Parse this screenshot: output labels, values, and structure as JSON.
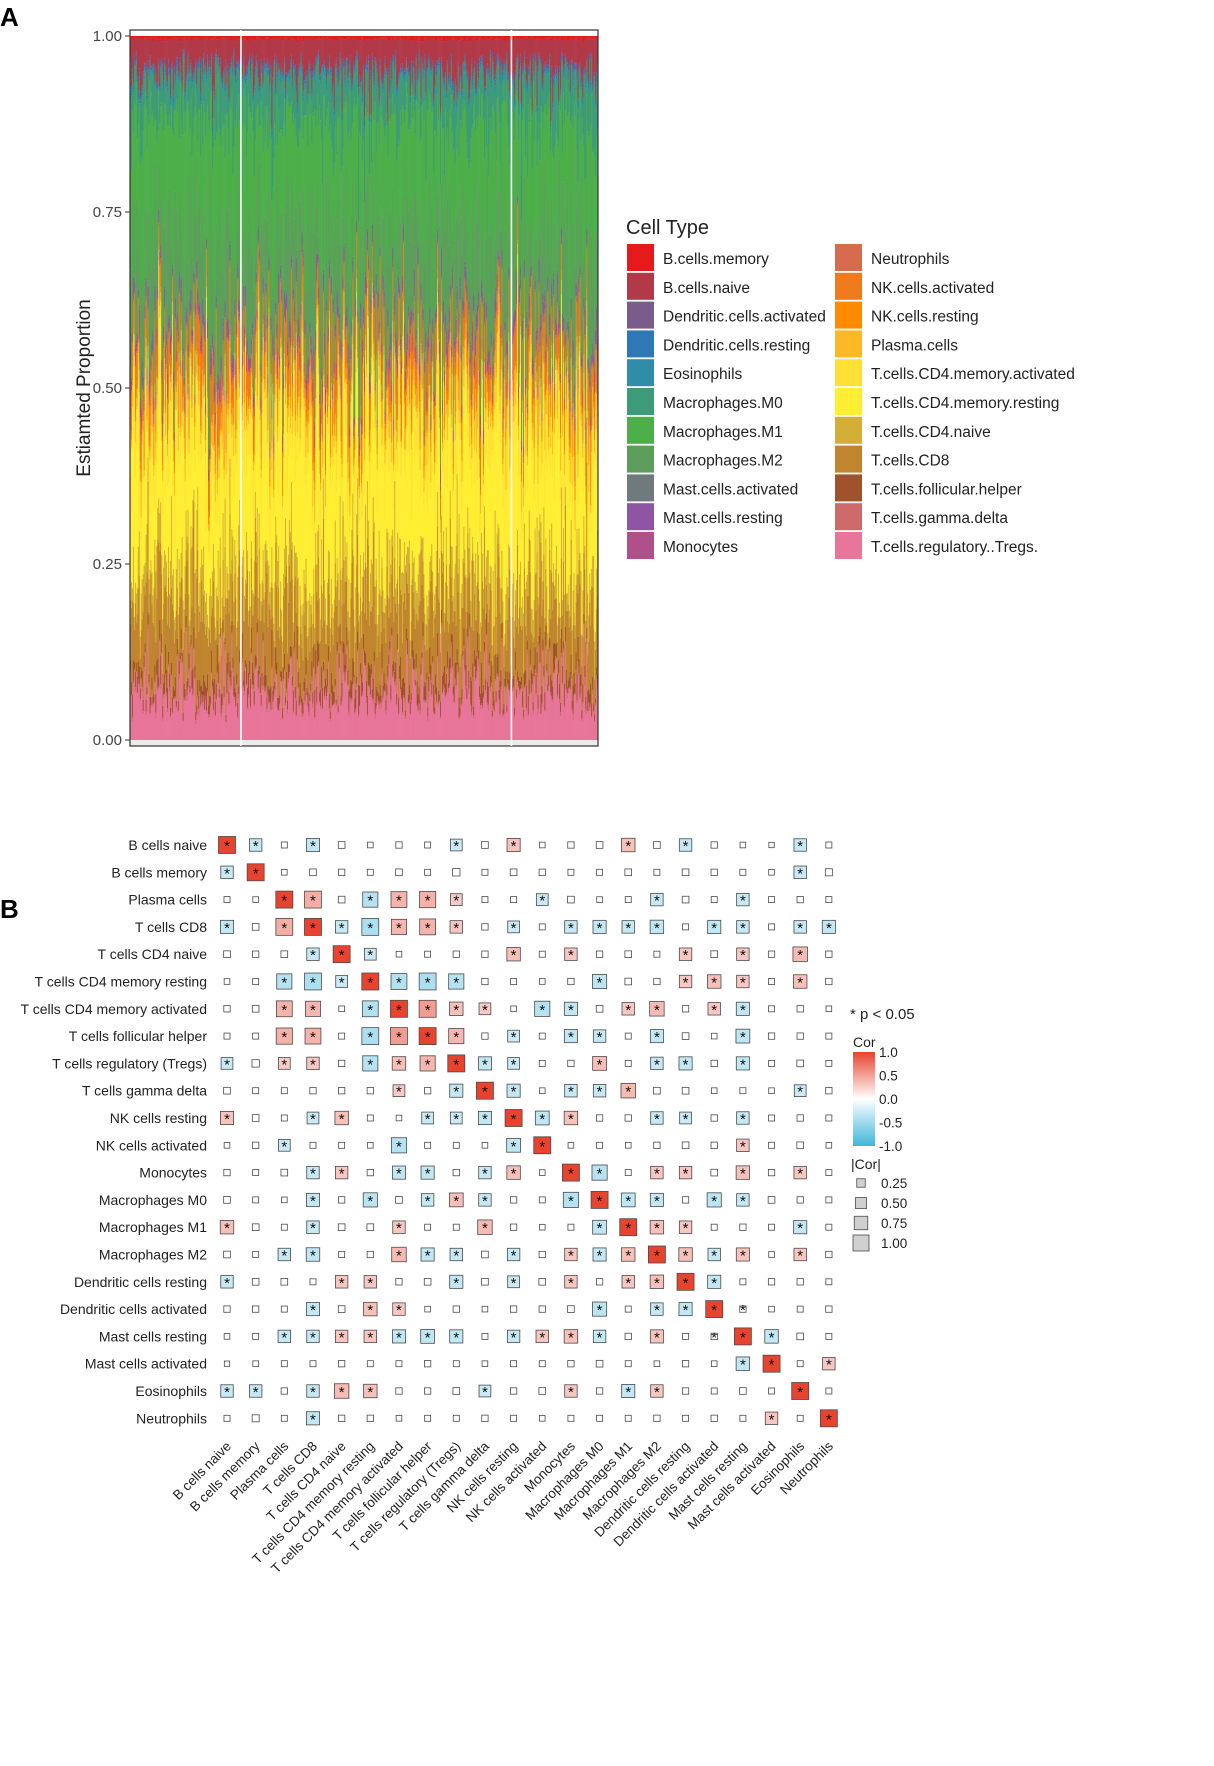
{
  "panels": {
    "a": "A",
    "b": "B"
  },
  "chart_data": [
    {
      "type": "area",
      "subtype": "stacked-proportion",
      "title": "",
      "ylabel": "Estiamted Proportion",
      "xlabel": "",
      "ylim": [
        0,
        1
      ],
      "y_ticks": [
        {
          "value": 0.0,
          "label": "0.00"
        },
        {
          "value": 0.25,
          "label": "0.25"
        },
        {
          "value": 0.5,
          "label": "0.50"
        },
        {
          "value": 0.75,
          "label": "0.75"
        },
        {
          "value": 1.0,
          "label": "1.00"
        }
      ],
      "grid": false,
      "legend_title": "Cell Type",
      "legend_position": "right",
      "n_samples": 480,
      "group_dividers_at_sample_fraction": [
        0.237,
        0.815
      ],
      "series": [
        {
          "name": "B.cells.memory",
          "color": "#E41A1C",
          "mean": 0.004
        },
        {
          "name": "B.cells.naive",
          "color": "#B23A48",
          "mean": 0.045
        },
        {
          "name": "Dendritic.cells.activated",
          "color": "#7A5C8C",
          "mean": 0.004
        },
        {
          "name": "Dendritic.cells.resting",
          "color": "#2F78B8",
          "mean": 0.004
        },
        {
          "name": "Eosinophils",
          "color": "#2F8DA8",
          "mean": 0.005
        },
        {
          "name": "Macrophages.M0",
          "color": "#3E9B7A",
          "mean": 0.06
        },
        {
          "name": "Macrophages.M1",
          "color": "#4DAF4A",
          "mean": 0.17
        },
        {
          "name": "Macrophages.M2",
          "color": "#5E9E5C",
          "mean": 0.13
        },
        {
          "name": "Mast.cells.activated",
          "color": "#707A7C",
          "mean": 0.004
        },
        {
          "name": "Mast.cells.resting",
          "color": "#8E55A3",
          "mean": 0.01
        },
        {
          "name": "Monocytes",
          "color": "#B0508A",
          "mean": 0.01
        },
        {
          "name": "Neutrophils",
          "color": "#D66B4E",
          "mean": 0.005
        },
        {
          "name": "NK.cells.activated",
          "color": "#F07A1E",
          "mean": 0.05
        },
        {
          "name": "NK.cells.resting",
          "color": "#FF8C00",
          "mean": 0.01
        },
        {
          "name": "Plasma.cells",
          "color": "#FDB827",
          "mean": 0.025
        },
        {
          "name": "T.cells.CD4.memory.activated",
          "color": "#FFE135",
          "mean": 0.05
        },
        {
          "name": "T.cells.CD4.memory.resting",
          "color": "#FFEE33",
          "mean": 0.17
        },
        {
          "name": "T.cells.CD4.naive",
          "color": "#D4AF37",
          "mean": 0.05
        },
        {
          "name": "T.cells.CD8",
          "color": "#C0852E",
          "mean": 0.1
        },
        {
          "name": "T.cells.follicular.helper",
          "color": "#A0522D",
          "mean": 0.02
        },
        {
          "name": "T.cells.gamma.delta",
          "color": "#CD6B6B",
          "mean": 0.004
        },
        {
          "name": "T.cells.regulatory..Tregs.",
          "color": "#E8759A",
          "mean": 0.07
        }
      ]
    },
    {
      "type": "heatmap",
      "subtype": "correlation-matrix",
      "title": "",
      "labels": [
        "B cells naive",
        "B cells memory",
        "Plasma cells",
        "T cells CD8",
        "T cells CD4 naive",
        "T cells CD4 memory resting",
        "T cells CD4 memory activated",
        "T cells follicular helper",
        "T cells regulatory (Tregs)",
        "T cells gamma delta",
        "NK cells resting",
        "NK cells activated",
        "Monocytes",
        "Macrophages M0",
        "Macrophages M1",
        "Macrophages M2",
        "Dendritic cells resting",
        "Dendritic cells activated",
        "Mast cells resting",
        "Mast cells activated",
        "Eosinophils",
        "Neutrophils"
      ],
      "sig_note": "* p < 0.05",
      "color_legend": {
        "title": "Cor",
        "ticks": [
          {
            "value": 1.0,
            "label": "1.0"
          },
          {
            "value": 0.5,
            "label": "0.5"
          },
          {
            "value": 0.0,
            "label": "0.0"
          },
          {
            "value": -0.5,
            "label": "-0.5"
          },
          {
            "value": -1.0,
            "label": "-1.0"
          }
        ],
        "high_color": "#E8432F",
        "mid_color": "#FFFFFF",
        "low_color": "#3FB6DB"
      },
      "size_legend": {
        "title": "|Cor|",
        "ticks": [
          {
            "value": 0.25,
            "label": "0.25"
          },
          {
            "value": 0.5,
            "label": "0.50"
          },
          {
            "value": 0.75,
            "label": "0.75"
          },
          {
            "value": 1.0,
            "label": "1.00"
          }
        ]
      },
      "significance_star": "*",
      "correlations": [
        [
          1.0,
          -0.22,
          0.03,
          -0.24,
          -0.05,
          -0.02,
          0.04,
          -0.03,
          -0.2,
          0.05,
          0.24,
          0.02,
          -0.04,
          -0.05,
          0.25,
          -0.05,
          -0.22,
          -0.04,
          -0.02,
          0.01,
          -0.22,
          0.03
        ],
        [
          -0.22,
          1.0,
          0.02,
          0.05,
          -0.04,
          0.03,
          0.05,
          -0.03,
          0.07,
          -0.03,
          0.05,
          0.04,
          -0.03,
          0.03,
          -0.05,
          0.03,
          0.05,
          -0.04,
          0.03,
          -0.02,
          -0.22,
          -0.06
        ],
        [
          0.03,
          0.02,
          1.0,
          0.35,
          -0.05,
          -0.3,
          0.32,
          0.33,
          0.2,
          -0.03,
          -0.03,
          -0.2,
          -0.05,
          0.02,
          0.03,
          -0.22,
          0.05,
          -0.03,
          -0.22,
          0.03,
          -0.04,
          0.03
        ],
        [
          -0.24,
          0.05,
          0.35,
          1.0,
          -0.22,
          -0.35,
          0.3,
          0.32,
          0.22,
          0.04,
          -0.2,
          -0.03,
          -0.22,
          -0.24,
          -0.22,
          -0.25,
          -0.03,
          -0.24,
          -0.22,
          -0.03,
          -0.22,
          -0.24
        ],
        [
          -0.05,
          -0.04,
          -0.05,
          -0.22,
          1.0,
          -0.2,
          0.02,
          -0.03,
          -0.04,
          0.04,
          0.25,
          -0.03,
          0.22,
          -0.04,
          -0.05,
          -0.03,
          0.22,
          0.05,
          0.22,
          -0.04,
          0.28,
          -0.04
        ],
        [
          -0.02,
          0.03,
          -0.3,
          -0.35,
          -0.2,
          1.0,
          -0.32,
          -0.35,
          -0.3,
          0.04,
          0.03,
          0.02,
          0.04,
          -0.27,
          -0.05,
          0.04,
          0.22,
          0.25,
          0.22,
          -0.03,
          0.25,
          0.04
        ],
        [
          0.04,
          0.05,
          0.32,
          0.3,
          0.02,
          -0.32,
          1.0,
          0.45,
          0.25,
          0.2,
          0.02,
          -0.3,
          -0.24,
          -0.05,
          0.22,
          0.28,
          -0.04,
          0.22,
          -0.24,
          -0.03,
          0.04,
          0.02
        ],
        [
          -0.03,
          -0.03,
          0.33,
          0.32,
          -0.03,
          -0.35,
          0.45,
          1.0,
          0.3,
          -0.04,
          -0.2,
          -0.03,
          -0.24,
          -0.22,
          -0.03,
          -0.24,
          -0.05,
          0.02,
          -0.26,
          -0.04,
          -0.04,
          0.03
        ],
        [
          -0.2,
          0.07,
          0.2,
          0.22,
          -0.04,
          -0.3,
          0.25,
          0.3,
          1.0,
          -0.24,
          -0.2,
          -0.03,
          0.04,
          0.26,
          -0.03,
          -0.22,
          -0.24,
          -0.04,
          -0.24,
          -0.03,
          -0.05,
          -0.03
        ],
        [
          0.05,
          -0.03,
          -0.03,
          0.04,
          0.04,
          0.04,
          0.2,
          -0.04,
          -0.24,
          1.0,
          -0.24,
          0.02,
          -0.22,
          -0.22,
          0.28,
          -0.05,
          0.05,
          0.02,
          -0.03,
          0.02,
          -0.2,
          -0.04
        ],
        [
          0.24,
          0.05,
          -0.03,
          -0.2,
          0.25,
          0.03,
          0.02,
          -0.2,
          -0.2,
          -0.24,
          1.0,
          -0.26,
          0.25,
          -0.04,
          0.04,
          -0.22,
          -0.2,
          -0.04,
          -0.22,
          0.03,
          -0.04,
          -0.03
        ],
        [
          0.02,
          0.04,
          -0.2,
          -0.03,
          -0.03,
          0.02,
          -0.3,
          -0.03,
          -0.03,
          0.02,
          -0.26,
          1.0,
          -0.02,
          -0.03,
          -0.02,
          -0.04,
          0.05,
          0.04,
          0.22,
          -0.03,
          -0.05,
          -0.02
        ],
        [
          -0.04,
          -0.03,
          -0.05,
          -0.22,
          0.22,
          0.04,
          -0.24,
          -0.24,
          0.04,
          -0.22,
          0.25,
          -0.02,
          1.0,
          -0.3,
          0.03,
          0.22,
          0.22,
          -0.05,
          0.25,
          0.04,
          0.22,
          0.03
        ],
        [
          -0.05,
          0.03,
          0.02,
          -0.24,
          -0.04,
          -0.27,
          -0.05,
          -0.22,
          0.26,
          -0.22,
          -0.04,
          -0.03,
          -0.3,
          1.0,
          -0.26,
          -0.24,
          -0.04,
          -0.27,
          -0.22,
          -0.05,
          -0.04,
          0.03
        ],
        [
          0.25,
          -0.05,
          0.03,
          -0.22,
          -0.05,
          -0.05,
          0.22,
          -0.03,
          -0.03,
          0.28,
          0.04,
          -0.02,
          0.03,
          -0.26,
          1.0,
          0.25,
          0.22,
          -0.03,
          -0.04,
          0.03,
          -0.24,
          -0.03
        ],
        [
          -0.05,
          0.03,
          -0.22,
          -0.25,
          -0.03,
          0.04,
          0.28,
          -0.24,
          -0.22,
          -0.05,
          -0.22,
          -0.04,
          0.22,
          -0.24,
          0.25,
          1.0,
          0.25,
          -0.22,
          0.24,
          -0.02,
          0.22,
          -0.04
        ],
        [
          -0.22,
          0.05,
          0.05,
          -0.03,
          0.22,
          0.22,
          -0.04,
          -0.05,
          -0.24,
          0.05,
          -0.2,
          0.05,
          0.22,
          -0.04,
          0.22,
          0.25,
          1.0,
          -0.24,
          -0.03,
          0.04,
          -0.04,
          0.03
        ],
        [
          -0.04,
          -0.04,
          -0.03,
          -0.24,
          0.05,
          0.25,
          0.22,
          0.02,
          -0.04,
          0.02,
          -0.04,
          0.04,
          -0.05,
          -0.27,
          -0.03,
          -0.22,
          -0.24,
          1.0,
          0.04,
          -0.02,
          -0.03,
          -0.04
        ],
        [
          -0.02,
          0.03,
          -0.22,
          -0.22,
          0.22,
          0.22,
          -0.24,
          -0.26,
          -0.24,
          -0.03,
          -0.22,
          0.22,
          0.25,
          -0.22,
          -0.04,
          0.24,
          -0.03,
          0.04,
          1.0,
          -0.25,
          -0.05,
          0.03
        ],
        [
          0.01,
          -0.02,
          0.03,
          -0.03,
          -0.04,
          -0.03,
          -0.03,
          -0.04,
          -0.03,
          0.02,
          0.03,
          -0.03,
          0.04,
          -0.05,
          0.03,
          -0.02,
          0.04,
          -0.02,
          -0.25,
          1.0,
          0.03,
          0.22
        ],
        [
          -0.22,
          -0.22,
          -0.04,
          -0.22,
          0.28,
          0.25,
          0.04,
          -0.04,
          -0.05,
          -0.2,
          -0.04,
          -0.05,
          0.22,
          -0.04,
          -0.24,
          0.22,
          -0.04,
          -0.03,
          -0.05,
          0.03,
          1.0,
          -0.03
        ],
        [
          0.03,
          -0.06,
          0.03,
          -0.24,
          -0.04,
          0.04,
          0.02,
          0.03,
          -0.03,
          -0.04,
          -0.03,
          -0.02,
          0.03,
          0.03,
          -0.03,
          -0.04,
          0.03,
          -0.04,
          0.03,
          0.22,
          -0.03,
          1.0
        ]
      ],
      "significant_upper": [
        [
          0,
          1
        ],
        [
          0,
          3
        ],
        [
          0,
          8
        ],
        [
          0,
          10
        ],
        [
          0,
          14
        ],
        [
          0,
          16
        ],
        [
          0,
          20
        ],
        [
          1,
          20
        ],
        [
          2,
          3
        ],
        [
          2,
          5
        ],
        [
          2,
          6
        ],
        [
          2,
          7
        ],
        [
          2,
          8
        ],
        [
          2,
          11
        ],
        [
          2,
          15
        ],
        [
          2,
          18
        ],
        [
          3,
          4
        ],
        [
          3,
          5
        ],
        [
          3,
          6
        ],
        [
          3,
          7
        ],
        [
          3,
          8
        ],
        [
          3,
          10
        ],
        [
          3,
          12
        ],
        [
          3,
          13
        ],
        [
          3,
          14
        ],
        [
          3,
          15
        ],
        [
          3,
          17
        ],
        [
          3,
          18
        ],
        [
          3,
          20
        ],
        [
          3,
          21
        ],
        [
          4,
          5
        ],
        [
          4,
          10
        ],
        [
          4,
          12
        ],
        [
          4,
          16
        ],
        [
          4,
          18
        ],
        [
          4,
          20
        ],
        [
          5,
          6
        ],
        [
          5,
          7
        ],
        [
          5,
          8
        ],
        [
          5,
          13
        ],
        [
          5,
          16
        ],
        [
          5,
          17
        ],
        [
          5,
          18
        ],
        [
          5,
          20
        ],
        [
          6,
          7
        ],
        [
          6,
          8
        ],
        [
          6,
          9
        ],
        [
          6,
          11
        ],
        [
          6,
          12
        ],
        [
          6,
          14
        ],
        [
          6,
          15
        ],
        [
          6,
          17
        ],
        [
          6,
          18
        ],
        [
          7,
          8
        ],
        [
          7,
          10
        ],
        [
          7,
          12
        ],
        [
          7,
          13
        ],
        [
          7,
          15
        ],
        [
          7,
          18
        ],
        [
          8,
          9
        ],
        [
          8,
          10
        ],
        [
          8,
          13
        ],
        [
          8,
          15
        ],
        [
          8,
          16
        ],
        [
          8,
          18
        ],
        [
          9,
          10
        ],
        [
          9,
          12
        ],
        [
          9,
          13
        ],
        [
          9,
          14
        ],
        [
          9,
          20
        ],
        [
          10,
          11
        ],
        [
          10,
          12
        ],
        [
          10,
          15
        ],
        [
          10,
          16
        ],
        [
          10,
          18
        ],
        [
          11,
          18
        ],
        [
          12,
          13
        ],
        [
          12,
          15
        ],
        [
          12,
          16
        ],
        [
          12,
          18
        ],
        [
          12,
          20
        ],
        [
          13,
          14
        ],
        [
          13,
          15
        ],
        [
          13,
          17
        ],
        [
          13,
          18
        ],
        [
          14,
          15
        ],
        [
          14,
          16
        ],
        [
          14,
          20
        ],
        [
          15,
          16
        ],
        [
          15,
          17
        ],
        [
          15,
          18
        ],
        [
          15,
          20
        ],
        [
          16,
          17
        ],
        [
          17,
          18
        ],
        [
          18,
          19
        ],
        [
          19,
          21
        ]
      ]
    }
  ]
}
